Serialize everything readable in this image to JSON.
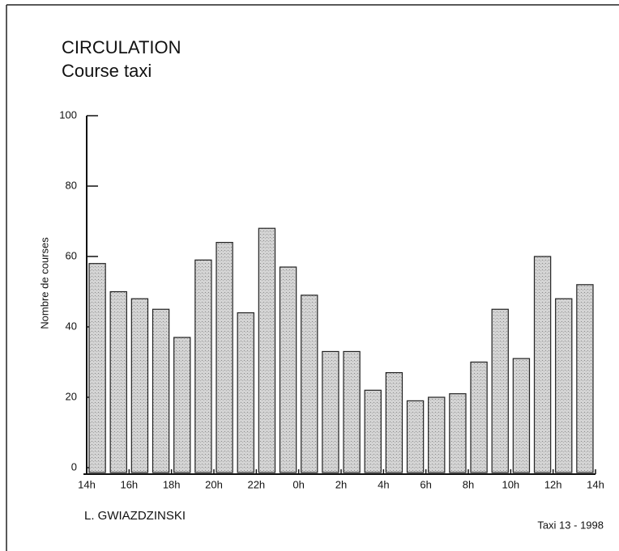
{
  "chart_data": {
    "type": "histogram",
    "title": "CIRCULATION",
    "subtitle": "Course taxi",
    "ylabel": "Nombre de courses",
    "author": "L. GWIAZDZINSKI",
    "source": "Taxi 13 - 1998",
    "bins": [
      0,
      1,
      2,
      3,
      4,
      5,
      6,
      7,
      8,
      9,
      10,
      11,
      12,
      13,
      14,
      15,
      16,
      17,
      18,
      19,
      20,
      21,
      22,
      23,
      24
    ],
    "values": [
      58,
      50,
      48,
      45,
      37,
      59,
      64,
      44,
      68,
      57,
      49,
      33,
      33,
      22,
      27,
      19,
      20,
      21,
      30,
      45,
      31,
      60,
      48,
      52
    ],
    "color": "#c8c8c8",
    "xlim": [
      0,
      24
    ],
    "xticks": [
      {
        "value": 0,
        "label": "14h"
      },
      {
        "value": 2,
        "label": "16h"
      },
      {
        "value": 4,
        "label": "18h"
      },
      {
        "value": 6,
        "label": "20h"
      },
      {
        "value": 8,
        "label": "22h"
      },
      {
        "value": 10,
        "label": "0h"
      },
      {
        "value": 12,
        "label": "2h"
      },
      {
        "value": 14,
        "label": "4h"
      },
      {
        "value": 16,
        "label": "6h"
      },
      {
        "value": 18,
        "label": "8h"
      },
      {
        "value": 20,
        "label": "10h"
      },
      {
        "value": 22,
        "label": "12h"
      },
      {
        "value": 24,
        "label": "14h"
      }
    ],
    "ylim": [
      0,
      100
    ],
    "yticks": [
      0,
      20,
      40,
      60,
      80,
      100
    ]
  }
}
